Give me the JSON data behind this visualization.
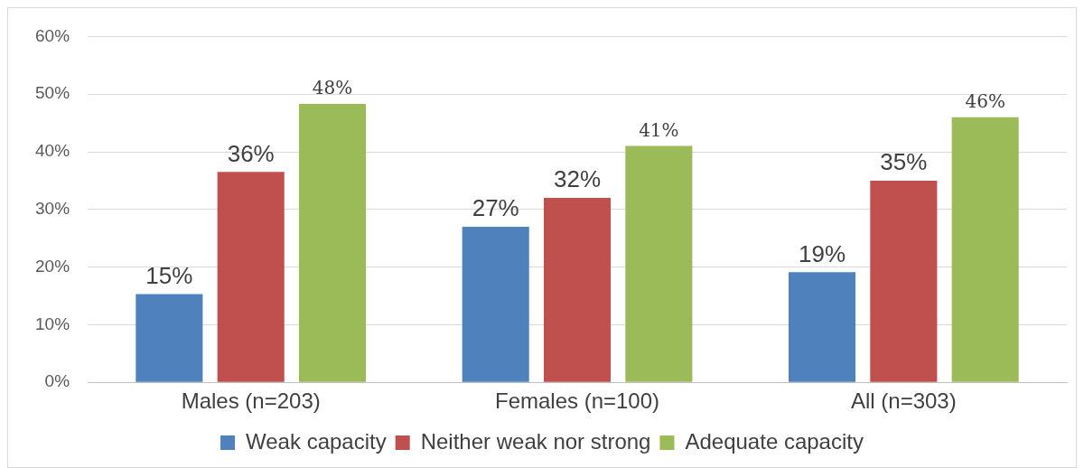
{
  "chart_data": {
    "type": "bar",
    "categories": [
      "Males (n=203)",
      "Females (n=100)",
      "All (n=303)"
    ],
    "series": [
      {
        "name": "Weak capacity",
        "color": "#4f81bd",
        "values": [
          15.3,
          27,
          19.1
        ],
        "value_labels": [
          "15%",
          "27%",
          "19%"
        ]
      },
      {
        "name": "Neither weak nor strong",
        "color": "#c0504d",
        "values": [
          36.5,
          32,
          35
        ],
        "value_labels": [
          "36%",
          "32%",
          "35%"
        ]
      },
      {
        "name": "Adequate capacity",
        "color": "#9bbb59",
        "values": [
          48.3,
          41,
          46
        ],
        "value_labels": [
          "48%",
          "41%",
          "46%"
        ]
      }
    ],
    "ylim": [
      0,
      60
    ],
    "yticks": [
      {
        "value": 0,
        "label": "0%"
      },
      {
        "value": 10,
        "label": "10%"
      },
      {
        "value": 20,
        "label": "20%"
      },
      {
        "value": 30,
        "label": "30%"
      },
      {
        "value": 40,
        "label": "40%"
      },
      {
        "value": 50,
        "label": "50%"
      },
      {
        "value": 60,
        "label": "60%"
      }
    ],
    "grid": "y",
    "legend": "bottom"
  }
}
